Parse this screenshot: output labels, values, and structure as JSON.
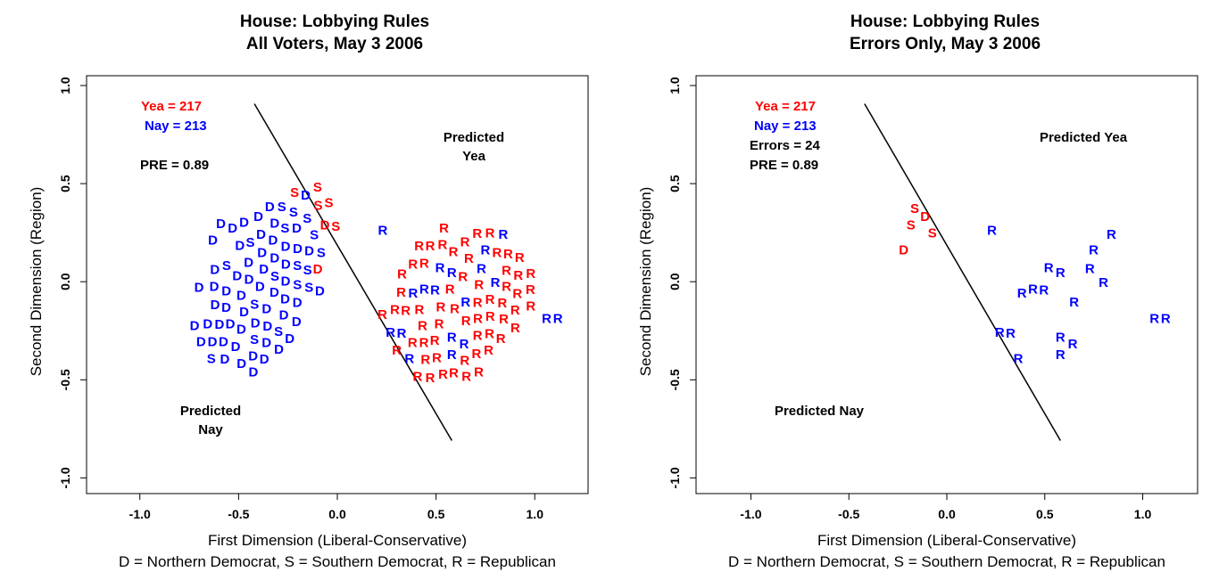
{
  "colors": {
    "yea": "#ff0000",
    "nay": "#0000ff",
    "ink": "#000000"
  },
  "chart_data": [
    {
      "type": "scatter",
      "title": "House: Lobbying Rules",
      "subtitle": "All Voters, May 3 2006",
      "xlabel": "First Dimension (Liberal-Conservative)",
      "ylabel": "Second Dimension (Region)",
      "caption": "D = Northern Democrat, S = Southern Democrat, R = Republican",
      "xlim": [
        -1.27,
        1.27
      ],
      "ylim": [
        -1.08,
        1.05
      ],
      "xticks": [
        -1.0,
        -0.5,
        0.0,
        0.5,
        1.0
      ],
      "xtick_labels": [
        "-1.0",
        "-0.5",
        "0.0",
        "0.5",
        "1.0"
      ],
      "yticks": [
        -1.0,
        -0.5,
        0.0,
        0.5,
        1.0
      ],
      "ytick_labels": [
        "-1.0",
        "-0.5",
        "0.0",
        "0.5",
        "1.0"
      ],
      "legend": {
        "yea": "Yea =  217",
        "nay": "Nay =  213",
        "pre": "PRE =  0.89"
      },
      "regions": {
        "yea_line1": "Predicted",
        "yea_line2": "Yea",
        "nay_line1": "Predicted",
        "nay_line2": "Nay"
      },
      "cutting_line": [
        [
          -0.42,
          0.907
        ],
        [
          0.58,
          -0.81
        ]
      ],
      "series": [
        {
          "name": "Nay (Democrats)",
          "color": "nay",
          "points": [
            [
              -0.63,
              0.21,
              "D"
            ],
            [
              -0.53,
              0.27,
              "D"
            ],
            [
              -0.55,
              0.27,
              "D"
            ],
            [
              -0.49,
              0.3,
              "D"
            ],
            [
              -0.4,
              0.33,
              "D"
            ],
            [
              -0.36,
              0.38,
              "D"
            ],
            [
              -0.29,
              0.38,
              "S"
            ],
            [
              -0.33,
              0.31,
              "D"
            ],
            [
              -0.31,
              0.27,
              "S"
            ],
            [
              -0.26,
              0.27,
              "D"
            ],
            [
              -0.21,
              0.3,
              "S"
            ],
            [
              -0.18,
              0.32,
              "S"
            ],
            [
              -0.16,
              0.44,
              "D"
            ],
            [
              -0.13,
              0.25,
              "S"
            ],
            [
              -0.5,
              0.19,
              "D"
            ],
            [
              -0.47,
              0.22,
              "S"
            ],
            [
              -0.44,
              0.24,
              "D"
            ],
            [
              -0.42,
              0.17,
              "D"
            ],
            [
              -0.38,
              0.21,
              "D"
            ],
            [
              -0.34,
              0.2,
              "D"
            ],
            [
              -0.3,
              0.18,
              "D"
            ],
            [
              -0.26,
              0.19,
              "D"
            ],
            [
              -0.22,
              0.2,
              "D"
            ],
            [
              -0.19,
              0.18,
              "S"
            ],
            [
              -0.15,
              0.17,
              "S"
            ],
            [
              -0.46,
              0.13,
              "D"
            ],
            [
              -0.4,
              0.12,
              "D"
            ],
            [
              -0.35,
              0.1,
              "S"
            ],
            [
              -0.3,
              0.11,
              "D"
            ],
            [
              -0.25,
              0.1,
              "D"
            ],
            [
              -0.21,
              0.08,
              "S"
            ],
            [
              -0.62,
              0.06,
              "D"
            ],
            [
              -0.57,
              0.08,
              "S"
            ],
            [
              -0.52,
              0.04,
              "D"
            ],
            [
              -0.47,
              0.05,
              "D"
            ],
            [
              -0.42,
              0.03,
              "D"
            ],
            [
              -0.37,
              0.04,
              "D"
            ],
            [
              -0.32,
              0.05,
              "S"
            ],
            [
              -0.27,
              0.02,
              "D"
            ],
            [
              -0.7,
              -0.03,
              "D"
            ],
            [
              -0.63,
              -0.02,
              "D"
            ],
            [
              -0.58,
              -0.05,
              "D"
            ],
            [
              -0.52,
              -0.03,
              "D"
            ],
            [
              -0.47,
              -0.02,
              "S"
            ],
            [
              -0.42,
              -0.04,
              "D"
            ],
            [
              -0.37,
              -0.03,
              "D"
            ],
            [
              -0.32,
              -0.04,
              "D"
            ],
            [
              -0.27,
              -0.03,
              "S"
            ],
            [
              -0.17,
              -0.05,
              "D"
            ],
            [
              -0.6,
              -0.1,
              "D"
            ],
            [
              -0.55,
              -0.08,
              "D"
            ],
            [
              -0.5,
              -0.1,
              "D"
            ],
            [
              -0.45,
              -0.12,
              "D"
            ],
            [
              -0.4,
              -0.1,
              "D"
            ],
            [
              -0.35,
              -0.11,
              "S"
            ],
            [
              -0.3,
              -0.12,
              "D"
            ],
            [
              -0.57,
              -0.16,
              "D"
            ],
            [
              -0.52,
              -0.17,
              "D"
            ],
            [
              -0.47,
              -0.15,
              "D"
            ],
            [
              -0.42,
              -0.16,
              "S"
            ],
            [
              -0.37,
              -0.14,
              "D"
            ],
            [
              -0.32,
              -0.17,
              "D"
            ],
            [
              -0.65,
              -0.21,
              "D"
            ],
            [
              -0.6,
              -0.22,
              "D"
            ],
            [
              -0.55,
              -0.21,
              "D"
            ],
            [
              -0.5,
              -0.23,
              "D"
            ],
            [
              -0.45,
              -0.2,
              "D"
            ],
            [
              -0.4,
              -0.22,
              "D"
            ],
            [
              -0.69,
              -0.28,
              "D"
            ],
            [
              -0.62,
              -0.26,
              "D"
            ],
            [
              -0.57,
              -0.26,
              "D"
            ],
            [
              -0.52,
              -0.25,
              "D"
            ],
            [
              -0.46,
              -0.24,
              "D"
            ],
            [
              -0.56,
              -0.32,
              "S"
            ],
            [
              -0.46,
              -0.34,
              "D"
            ],
            [
              0.23,
              0.26,
              "R"
            ],
            [
              0.84,
              0.24,
              "R"
            ],
            [
              0.75,
              0.16,
              "R"
            ],
            [
              0.52,
              0.07,
              "R"
            ],
            [
              0.58,
              0.045,
              "R"
            ],
            [
              0.73,
              0.065,
              "R"
            ],
            [
              0.8,
              -0.005,
              "R"
            ],
            [
              0.44,
              -0.04,
              "R"
            ],
            [
              0.45,
              -0.045,
              "R"
            ],
            [
              0.42,
              -0.06,
              "R"
            ],
            [
              0.65,
              -0.105,
              "R"
            ],
            [
              1.06,
              -0.19,
              "R"
            ],
            [
              1.09,
              -0.19,
              "R"
            ],
            [
              0.27,
              -0.26,
              "R"
            ],
            [
              0.28,
              -0.265,
              "R"
            ],
            [
              0.58,
              -0.285,
              "R"
            ],
            [
              0.615,
              -0.32,
              "R"
            ],
            [
              0.58,
              -0.355,
              "R"
            ],
            [
              0.365,
              -0.395,
              "R"
            ]
          ]
        },
        {
          "name": "Yea (Republicans)",
          "color": "yea",
          "points": [
            [
              0.54,
              0.27,
              "R"
            ],
            [
              0.47,
              0.18,
              "R"
            ],
            [
              0.52,
              0.2,
              "R"
            ],
            [
              0.57,
              0.15,
              "R"
            ],
            [
              0.61,
              0.2,
              "R"
            ],
            [
              0.66,
              0.22,
              "R"
            ],
            [
              0.7,
              0.19,
              "R"
            ],
            [
              0.74,
              0.17,
              "R"
            ],
            [
              0.44,
              0.12,
              "R"
            ],
            [
              0.5,
              0.1,
              "R"
            ],
            [
              0.55,
              0.09,
              "R"
            ],
            [
              0.6,
              0.12,
              "R"
            ],
            [
              0.65,
              0.1,
              "R"
            ],
            [
              0.7,
              0.11,
              "R"
            ],
            [
              0.76,
              0.08,
              "R"
            ],
            [
              0.82,
              0.06,
              "R"
            ],
            [
              0.39,
              0.05,
              "R"
            ],
            [
              0.45,
              0.04,
              "R"
            ],
            [
              0.5,
              0.05,
              "R"
            ],
            [
              0.56,
              0.03,
              "R"
            ],
            [
              0.62,
              0.05,
              "R"
            ],
            [
              0.68,
              0.03,
              "R"
            ],
            [
              0.73,
              0.02,
              "R"
            ],
            [
              0.79,
              0.03,
              "R"
            ],
            [
              0.87,
              0.06,
              "R"
            ],
            [
              0.98,
              0.04,
              "R"
            ],
            [
              0.33,
              -0.05,
              "R"
            ],
            [
              0.38,
              -0.05,
              "R"
            ],
            [
              0.43,
              -0.02,
              "R"
            ],
            [
              0.48,
              -0.03,
              "R"
            ],
            [
              0.53,
              -0.02,
              "R"
            ],
            [
              0.59,
              -0.01,
              "R"
            ],
            [
              0.64,
              -0.03,
              "R"
            ],
            [
              0.7,
              -0.02,
              "R"
            ],
            [
              0.76,
              -0.04,
              "R"
            ],
            [
              0.85,
              -0.05,
              "R"
            ],
            [
              0.9,
              -0.02,
              "R"
            ],
            [
              0.98,
              -0.08,
              "R"
            ],
            [
              0.36,
              -0.1,
              "R"
            ],
            [
              0.42,
              -0.1,
              "R"
            ],
            [
              0.47,
              -0.12,
              "R"
            ],
            [
              0.52,
              -0.09,
              "R"
            ],
            [
              0.57,
              -0.11,
              "R"
            ],
            [
              0.63,
              -0.1,
              "R"
            ],
            [
              0.69,
              -0.08,
              "R"
            ],
            [
              0.78,
              -0.09,
              "R"
            ],
            [
              0.4,
              -0.17,
              "R"
            ],
            [
              0.46,
              -0.16,
              "R"
            ],
            [
              0.51,
              -0.18,
              "R"
            ],
            [
              0.56,
              -0.15,
              "R"
            ],
            [
              0.61,
              -0.17,
              "R"
            ],
            [
              0.66,
              -0.14,
              "R"
            ],
            [
              0.29,
              -0.27,
              "R"
            ],
            [
              0.4,
              -0.27,
              "R"
            ],
            [
              0.46,
              -0.24,
              "R"
            ],
            [
              0.52,
              -0.25,
              "R"
            ],
            [
              0.6,
              -0.26,
              "R"
            ],
            [
              0.5,
              -0.33,
              "R"
            ],
            [
              0.55,
              -0.36,
              "R"
            ],
            [
              0.5,
              -0.4,
              "R"
            ],
            [
              0.66,
              -0.38,
              "R"
            ],
            [
              -0.1,
              0.48,
              "S"
            ],
            [
              -0.11,
              0.4,
              "S"
            ],
            [
              -0.07,
              0.4,
              "S"
            ],
            [
              -0.16,
              0.37,
              "S"
            ],
            [
              -0.11,
              0.33,
              "D"
            ],
            [
              -0.08,
              0.28,
              "S"
            ],
            [
              -0.21,
              0.17,
              "D"
            ]
          ]
        }
      ]
    },
    {
      "type": "scatter",
      "title": "House: Lobbying Rules",
      "subtitle": "Errors Only, May 3 2006",
      "xlabel": "First Dimension (Liberal-Conservative)",
      "ylabel": "Second Dimension (Region)",
      "caption": "D = Northern Democrat, S = Southern Democrat, R = Republican",
      "xlim": [
        -1.28,
        1.28
      ],
      "ylim": [
        -1.08,
        1.05
      ],
      "xticks": [
        -1.0,
        -0.5,
        0.0,
        0.5,
        1.0
      ],
      "xtick_labels": [
        "-1.0",
        "-0.5",
        "0.0",
        "0.5",
        "1.0"
      ],
      "yticks": [
        -1.0,
        -0.5,
        0.0,
        0.5,
        1.0
      ],
      "ytick_labels": [
        "-1.0",
        "-0.5",
        "0.0",
        "0.5",
        "1.0"
      ],
      "legend": {
        "yea": "Yea =  217",
        "nay": "Nay =  213",
        "errors": "Errors =  24",
        "pre": "PRE =  0.89"
      },
      "regions": {
        "yea": "Predicted Yea",
        "nay": "Predicted Nay"
      },
      "cutting_line": [
        [
          -0.42,
          0.907
        ],
        [
          0.58,
          -0.81
        ]
      ],
      "series": [
        {
          "name": "Yea errors",
          "color": "yea",
          "points": [
            [
              -0.164,
              0.37,
              "S"
            ],
            [
              -0.12,
              0.33,
              "D"
            ],
            [
              -0.196,
              0.3,
              "S"
            ],
            [
              -0.087,
              0.26,
              "S"
            ],
            [
              -0.22,
              0.16,
              "D"
            ]
          ]
        },
        {
          "name": "Nay errors",
          "color": "nay",
          "points": [
            [
              0.23,
              0.26,
              "R"
            ],
            [
              0.84,
              0.24,
              "R"
            ],
            [
              0.75,
              0.16,
              "R"
            ],
            [
              0.52,
              0.07,
              "R"
            ],
            [
              0.58,
              0.045,
              "R"
            ],
            [
              0.73,
              0.065,
              "R"
            ],
            [
              0.8,
              -0.005,
              "R"
            ],
            [
              0.44,
              -0.04,
              "R"
            ],
            [
              0.45,
              -0.045,
              "R"
            ],
            [
              0.42,
              -0.06,
              "R"
            ],
            [
              0.65,
              -0.105,
              "R"
            ],
            [
              1.06,
              -0.19,
              "R"
            ],
            [
              1.09,
              -0.19,
              "R"
            ],
            [
              0.27,
              -0.26,
              "R"
            ],
            [
              0.28,
              -0.265,
              "R"
            ],
            [
              0.58,
              -0.285,
              "R"
            ],
            [
              0.615,
              -0.32,
              "R"
            ],
            [
              0.58,
              -0.355,
              "R"
            ],
            [
              0.365,
              -0.395,
              "R"
            ]
          ]
        }
      ]
    }
  ]
}
